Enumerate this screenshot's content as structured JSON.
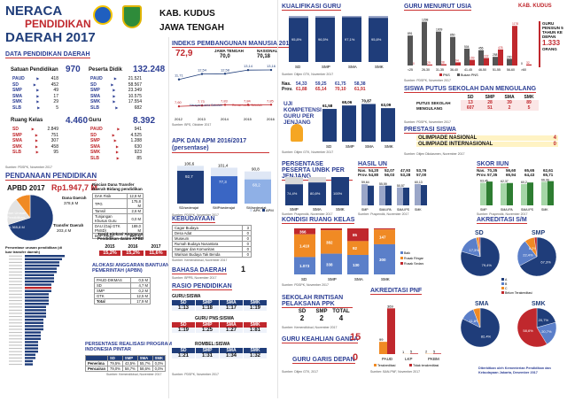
{
  "header": {
    "title_line1": "NERACA",
    "title_line2": "PENDIDIKAN",
    "title_line3": "DAERAH 2017",
    "region_line1": "KAB. KUDUS",
    "region_line2": "JAWA TENGAH"
  },
  "data_pendidikan": {
    "title": "DATA PENDIDIKAN DAERAH",
    "satuan_label": "Satuan Pendidikan",
    "satuan_total": "970",
    "satuan_rows": [
      {
        "label": "PAUD",
        "value": "418"
      },
      {
        "label": "SD",
        "value": "452"
      },
      {
        "label": "SMP",
        "value": "49"
      },
      {
        "label": "SMA",
        "value": "17"
      },
      {
        "label": "SMK",
        "value": "29"
      },
      {
        "label": "SLB",
        "value": "5"
      }
    ],
    "peserta_label": "Peserta Didik",
    "peserta_total": "132.248",
    "peserta_rows": [
      {
        "label": "PAUD",
        "value": "21.521"
      },
      {
        "label": "SD",
        "value": "58.567"
      },
      {
        "label": "SMP",
        "value": "23.349"
      },
      {
        "label": "SMA",
        "value": "10.575"
      },
      {
        "label": "SMK",
        "value": "17.554"
      },
      {
        "label": "SLB",
        "value": "682"
      }
    ],
    "ruang_label": "Ruang Kelas",
    "ruang_total": "4.460",
    "ruang_rows": [
      {
        "label": "SD",
        "value": "2.849"
      },
      {
        "label": "SMP",
        "value": "751"
      },
      {
        "label": "SMA",
        "value": "307"
      },
      {
        "label": "SMK",
        "value": "458"
      },
      {
        "label": "SLB",
        "value": "95"
      }
    ],
    "guru_label": "Guru",
    "guru_total": "8.392",
    "guru_rows": [
      {
        "label": "PAUD",
        "value": "941"
      },
      {
        "label": "SD",
        "value": "4.525"
      },
      {
        "label": "SMP",
        "value": "1.288"
      },
      {
        "label": "SMA",
        "value": "630"
      },
      {
        "label": "SMK",
        "value": "923"
      },
      {
        "label": "SLB",
        "value": "85"
      }
    ],
    "source": "Sumber: PDSPK, November 2017"
  },
  "pendanaan": {
    "title": "PENDANAAN PENDIDIKAN",
    "apbd_label": "APBD 2017",
    "apbd_value": "Rp1.947,7 M",
    "dana_daerah_label": "Dana Daerah",
    "dana_daerah_value": "378,6 M",
    "non_urusan_label": "Non Urusan Pendidikan",
    "non_urusan_value": "1.365,8 M",
    "transfer_label": "Transfer Daerah",
    "transfer_value": "203,4 M",
    "rincian_title": "Rincian Dana Transfer Daerah Bidang pendidikan",
    "rincian_rows": [
      {
        "label": "DAK Fisik",
        "value": "12,8 M"
      },
      {
        "label": "TPG",
        "value": "175,8 M"
      },
      {
        "label": "Tamsil",
        "value": "2,6 M"
      },
      {
        "label": "Tunjangan Khusus Guru",
        "value": "0,0 M"
      },
      {
        "label": "DAU (Gaji GTK PNSD)",
        "value": "189,0 M"
      },
      {
        "label": "BOP PAUD",
        "value": "12,0 M"
      }
    ],
    "persen_label": "Persentase urusan pendidikan (di luar transfer daerah)",
    "trend_label": "Trend Alokasi Anggaran Pendidikan dalam APBD",
    "trend_years": [
      "2015",
      "2016",
      "2017"
    ],
    "trend_values": [
      "15,2%",
      "15,2%",
      "11,6%"
    ],
    "bantuan_title": "ALOKASI ANGGARAN BANTUAN PEMERINTAH (APBN)",
    "bantuan_rows": [
      {
        "label": "PAUD-DIKMAS",
        "value": "0,5 M"
      },
      {
        "label": "SD",
        "value": "4,7 M"
      },
      {
        "label": "SMP",
        "value": "0,2 M"
      },
      {
        "label": "GTK",
        "value": "12,5 M"
      },
      {
        "label": "Total",
        "value": "17,9 M"
      }
    ],
    "pip_title": "PERSENTASE REALISASI PROGRAM INDONESIA PINTAR",
    "pip_head": [
      "",
      "SD",
      "SMP",
      "SMA",
      "SMK"
    ],
    "pip_rows": [
      {
        "label": "Penerima",
        "values": [
          "79,5%",
          "43,5%",
          "55,7%",
          "0,0%"
        ]
      },
      {
        "label": "Pencairan",
        "values": [
          "79,0%",
          "58,7%",
          "58,6%",
          "0,0%"
        ]
      }
    ],
    "source": "Sumber: Kemendikbud, November 2017"
  },
  "ipm": {
    "title": "INDEKS PEMBANGUNAN MANUSIA 2016",
    "value": "72,9",
    "jt_label": "JAWA TENGAH",
    "jt_value": "70,0",
    "nas_label": "NASIONAL",
    "nas_value": "70,18",
    "harapan_label": "Harapan Lama Sekolah",
    "rata_label": "Rerata Lama Sekolah",
    "source": "Sumber: BPS, Oktober 2017"
  },
  "apk": {
    "title": "APK DAN APM 2016/2017 (persentase)",
    "legend_apk": "APK",
    "legend_apm": "APM",
    "source": "Sumber: PDSPK, November 2017"
  },
  "kebudayaan": {
    "title": "KEBUDAYAAN",
    "rows": [
      {
        "label": "Cagar Budaya",
        "value": "3"
      },
      {
        "label": "Desa Adat",
        "value": "0"
      },
      {
        "label": "Museum",
        "value": "0"
      },
      {
        "label": "Rumah Budaya Nusantara",
        "value": "0"
      },
      {
        "label": "Sanggar dan Komunitas",
        "value": "0"
      },
      {
        "label": "Warisan Budaya Tak Benda",
        "value": "0"
      }
    ],
    "source": "Sumber: Kemendikbud, November 2017"
  },
  "bahasa": {
    "title": "BAHASA DAERAH",
    "value": "1",
    "source": "Sumber: BPPB, November 2017"
  },
  "rasio": {
    "title": "RASIO PENDIDIKAN",
    "guru_siswa_label": "GURU:SISWA",
    "head": [
      "SD",
      "SMP",
      "SMA",
      "SMK"
    ],
    "guru_siswa": [
      "1:13",
      "1:18",
      "1:17",
      "1:19"
    ],
    "pns_label": "GURU PNS:SISWA",
    "pns": [
      "1:19",
      "1:25",
      "1:27",
      "1:81"
    ],
    "rombel_label": "ROMBEL:SISWA",
    "rombel": [
      "1:21",
      "1:31",
      "1:34",
      "1:32"
    ],
    "source": "Sumber: PDSPK, November 2017"
  },
  "kualifikasi": {
    "title": "KUALIFIKASI GURU",
    "source": "Sumber: Ditjen GTK, November 2017"
  },
  "guru_usia": {
    "title": "GURU MENURUT USIA",
    "region": "KAB. KUDUS",
    "pensiun_label": "GURU PENSIUN 5 TAHUN KE DEPAN",
    "pensiun_value": "1.333",
    "pensiun_unit": "ORANG",
    "legend": [
      "PNS",
      "Bukan PNS"
    ],
    "source": "Sumber: PDSPK, November 2017"
  },
  "uji_kompetensi": {
    "title": "UJI KOMPETENSI GURU PER JENJANG",
    "nas_label": "Nas.",
    "prov_label": "Prov.",
    "heads": [
      "SD",
      "SMP",
      "SMA",
      "SMK"
    ],
    "nas": [
      "54,33",
      "59,25",
      "61,75",
      "58,38"
    ],
    "prov": [
      "61,88",
      "65,14",
      "70,10",
      "61,91"
    ],
    "source": "Sumber: Ditjen GTK, November 2017"
  },
  "putus_sekolah": {
    "title": "SISWA PUTUS SEKOLAH DAN MENGULANG",
    "heads": [
      "SD",
      "SMP",
      "SMA",
      "SMK"
    ],
    "rows": [
      {
        "label": "PUTUS SEKOLAH",
        "values": [
          "13",
          "28",
          "39",
          "89"
        ]
      },
      {
        "label": "MENGULANG",
        "values": [
          "607",
          "51",
          "2",
          "5"
        ]
      }
    ],
    "source": "Sumber: PDSPK, November 2017"
  },
  "prestasi": {
    "title": "PRESTASI SISWA",
    "rows": [
      {
        "label": "OLIMPIADE NASIONAL",
        "value": "4"
      },
      {
        "label": "OLIMPIADE INTERNASIONAL",
        "value": "0"
      }
    ],
    "source": "Sumber: Ditjen Dikdasmen, November 2017"
  },
  "unbk": {
    "title": "PERSENTASE PESERTA UNBK PER JENJANG",
    "source": "Sumber: Puspendik, November 2017"
  },
  "hasil_un": {
    "title": "HASIL UN",
    "nas_label": "Nas.",
    "prov_label": "Prov.",
    "nas": [
      "54,20",
      "52,07",
      "47,93",
      "53,76"
    ],
    "prov": [
      "54,80",
      "56,03",
      "53,28",
      "57,00"
    ],
    "cats": [
      "SMP",
      "SMA IPA",
      "SMA IPS",
      "SMK"
    ],
    "legend": [
      "2016",
      "2017"
    ],
    "source": "Sumber: Puspendik, November 2017"
  },
  "skor_iiun": {
    "title": "SKOR IIUN",
    "nas_label": "Nas.",
    "prov_label": "Prov.",
    "nas": [
      "70,35",
      "56,60",
      "65,65",
      "62,61"
    ],
    "prov": [
      "57,35",
      "65,94",
      "64,43",
      "65,71"
    ],
    "cats": [
      "SMP",
      "SMA IPA",
      "SMA IPS",
      "SMK"
    ],
    "source": "Sumber: Puspendik, November 2017"
  },
  "kondisi_ruang": {
    "title": "KONDISI RUANG KELAS",
    "source": "Sumber: PDSPK, November 2017"
  },
  "akreditasi": {
    "title": "AKREDITASI S/M",
    "labels": [
      "SD",
      "SMP",
      "SMA",
      "SMK"
    ],
    "legend": [
      "A",
      "B",
      "C",
      "Belum Terakreditasi"
    ]
  },
  "rintisan": {
    "title": "SEKOLAH RINTISAN PELAKSANA PPK",
    "heads": [
      "SD",
      "SMP",
      "TOTAL"
    ],
    "values": [
      "2",
      "2",
      "4"
    ],
    "source": "Sumber: Kemendikbud, November 2017"
  },
  "keahlian": {
    "title": "GURU KEAHLIAN GANDA",
    "value": "15",
    "garis_title": "GURU GARIS DEPAN",
    "garis_value": "0",
    "source": "Sumber: Ditjen GTK, 2017"
  },
  "pnf": {
    "title": "AKREDITASI PNF",
    "legend": [
      "Terakreditasi",
      "Tidak terakreditasi"
    ],
    "source": "Sumber: BAN-PNF, November 2017"
  },
  "footer": {
    "note": "Diterbitkan oleh Kementerian Pendidikan dan Kebudayaan Jakarta, Desember 2017"
  },
  "chart_data": [
    {
      "type": "line",
      "title": "INDEKS PEMBANGUNAN MANUSIA 2016",
      "x": [
        "2012",
        "2013",
        "2014",
        "2015",
        "2016"
      ],
      "series": [
        {
          "name": "Harapan Lama Sekolah",
          "values": [
            11.71,
            12.54,
            12.58,
            13.14,
            13.16
          ]
        },
        {
          "name": "Rerata Lama Sekolah",
          "values": [
            7.6,
            7.73,
            7.83,
            7.84,
            7.85
          ]
        }
      ]
    },
    {
      "type": "bar",
      "title": "APK DAN APM 2016/2017",
      "categories": [
        "SD/sederajat",
        "SMP/sederajat",
        "SM/sederajat"
      ],
      "series": [
        {
          "name": "APK",
          "values": [
            106.6,
            101.4,
            90.8
          ]
        },
        {
          "name": "APM",
          "values": [
            92.7,
            77.3,
            68.2
          ]
        }
      ],
      "ylim": [
        0,
        120
      ]
    },
    {
      "type": "bar",
      "title": "KUALIFIKASI GURU",
      "categories": [
        "SD",
        "SMP",
        "SMA",
        "SMK"
      ],
      "series": [
        {
          "name": "S1/D4",
          "values": [
            95.8,
            96.5,
            97.1,
            95.8
          ]
        },
        {
          "name": "< S1",
          "values": [
            4.2,
            3.5,
            2.9,
            4.2
          ]
        }
      ],
      "ylim": [
        0,
        100
      ]
    },
    {
      "type": "bar",
      "title": "GURU MENURUT USIA",
      "categories": [
        "<25",
        "26-30",
        "31-35",
        "36-40",
        "41-45",
        "46-50",
        "51-55",
        "56-60",
        ">60"
      ],
      "series": [
        {
          "name": "PNS",
          "values": [
            0,
            29,
            38,
            94,
            169,
            222,
            478,
            1178,
            32
          ]
        },
        {
          "name": "Bukan PNS",
          "values": [
            891,
            1298,
            1009,
            850,
            504,
            456,
            258,
            200,
            0
          ]
        }
      ]
    },
    {
      "type": "bar",
      "title": "UJI KOMPETENSI GURU PER JENJANG",
      "categories": [
        "SD",
        "SMP",
        "SMA",
        "SMK"
      ],
      "values": [
        61.58,
        68.06,
        70.87,
        63.09
      ],
      "ylim": [
        0,
        80
      ]
    },
    {
      "type": "bar",
      "title": "PERSENTASE PESERTA UNBK PER JENJANG",
      "categories": [
        "SMP",
        "SMA",
        "SMK"
      ],
      "series": [
        {
          "name": "UNBK",
          "values": [
            74.4,
            80.8,
            100
          ]
        },
        {
          "name": "UNKP",
          "values": [
            25.6,
            19.2,
            0
          ]
        }
      ],
      "ylim": [
        0,
        100
      ]
    },
    {
      "type": "bar",
      "title": "HASIL UN",
      "categories": [
        "SMP",
        "SMA IPA",
        "SMA IPS",
        "SMK"
      ],
      "series": [
        {
          "name": "2016",
          "values": [
            59.64,
            55.59,
            50.57,
            60.13
          ]
        },
        {
          "name": "2017",
          "values": [
            55.64,
            55.63,
            50.07,
            57.43
          ]
        }
      ],
      "ylim": [
        0,
        70
      ]
    },
    {
      "type": "bar",
      "title": "SKOR IIUN",
      "categories": [
        "SMP",
        "SMA IPA",
        "SMA IPS",
        "SMK"
      ],
      "series": [
        {
          "name": "2016",
          "values": [
            63.45,
            62.37,
            60.2,
            66.39
          ]
        },
        {
          "name": "2017",
          "values": [
            67.26,
            63.14,
            64.56,
            68.44
          ]
        }
      ],
      "ylim": [
        0,
        80
      ]
    },
    {
      "type": "bar",
      "title": "KONDISI RUANG KELAS",
      "categories": [
        "SD",
        "SMP",
        "SMA",
        "SMK"
      ],
      "series": [
        {
          "name": "Baik",
          "values": [
            1073,
            338,
            130,
            300
          ]
        },
        {
          "name": "Rusak Ringan",
          "values": [
            1410,
            382,
            92,
            147
          ]
        },
        {
          "name": "Rusak Sedang",
          "values": [
            366,
            31,
            85,
            11
          ]
        }
      ]
    },
    {
      "type": "bar",
      "title": "AKREDITASI PNF",
      "categories": [
        "PAUD",
        "LKP",
        "PKBM"
      ],
      "series": [
        {
          "name": "Terakreditasi",
          "values": [
            99,
            1,
            2
          ]
        },
        {
          "name": "Tidak terakreditasi",
          "values": [
            369,
            5,
            5
          ]
        }
      ],
      "ylim": [
        0,
        400
      ]
    },
    {
      "type": "pie",
      "title": "AKREDITASI SD",
      "categories": [
        "A",
        "B",
        "C",
        "Belum"
      ],
      "values": [
        79.4,
        17.3,
        2.2,
        1.1
      ]
    },
    {
      "type": "pie",
      "title": "AKREDITASI SMP",
      "categories": [
        "A",
        "B",
        "C",
        "Belum"
      ],
      "values": [
        67.3,
        22.4,
        8.2,
        2.1
      ]
    },
    {
      "type": "pie",
      "title": "AKREDITASI SMA",
      "categories": [
        "A",
        "B",
        "C",
        "Belum"
      ],
      "values": [
        82.4,
        11.8,
        5.8,
        0
      ]
    },
    {
      "type": "pie",
      "title": "AKREDITASI SMK",
      "categories": [
        "A",
        "B",
        "C",
        "Belum"
      ],
      "values": [
        20.7,
        20.7,
        0,
        58.6
      ]
    },
    {
      "type": "pie",
      "title": "APBD 2017",
      "categories": [
        "Non Urusan Pendidikan",
        "Dana Daerah",
        "Transfer Daerah"
      ],
      "values": [
        1365.8,
        378.6,
        203.4
      ]
    }
  ]
}
